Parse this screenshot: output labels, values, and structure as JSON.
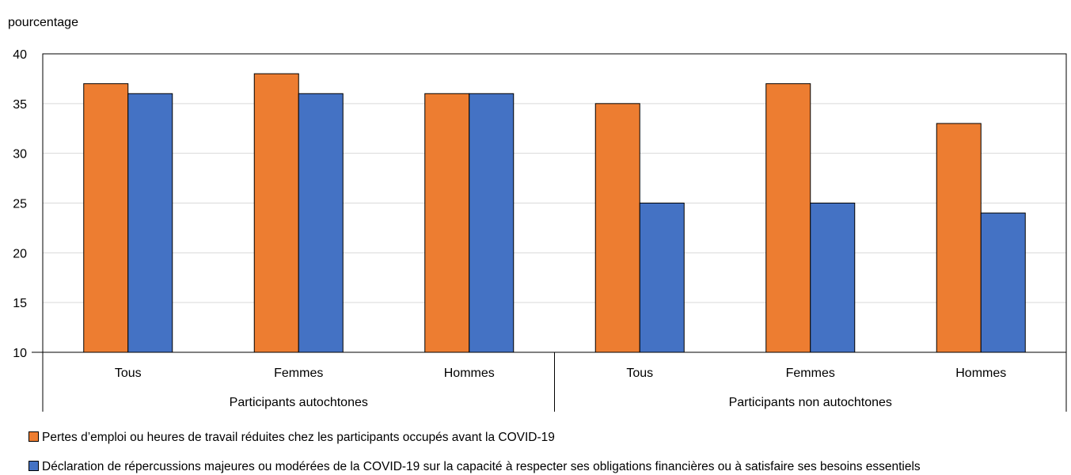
{
  "chart_data": {
    "type": "bar",
    "ylabel": "pourcentage",
    "ylim": [
      10,
      40
    ],
    "yticks": [
      10,
      15,
      20,
      25,
      30,
      35,
      40
    ],
    "grid": true,
    "categories": [
      "Tous",
      "Femmes",
      "Hommes",
      "Tous",
      "Femmes",
      "Hommes"
    ],
    "groups": [
      {
        "label": "Participants autochtones",
        "categories": [
          0,
          1,
          2
        ]
      },
      {
        "label": "Participants non autochtones",
        "categories": [
          3,
          4,
          5
        ]
      }
    ],
    "series": [
      {
        "name": "Pertes d’emploi ou heures de travail réduites chez les participants occupés avant la COVID-19",
        "color": "#ED7D31",
        "values": [
          37,
          38,
          36,
          35,
          37,
          33
        ]
      },
      {
        "name": "Déclaration de répercussions majeures ou modérées de la COVID-19 sur la capacité à respecter ses obligations financières ou à satisfaire ses besoins essentiels",
        "color": "#4472C4",
        "values": [
          36,
          36,
          36,
          25,
          25,
          24
        ]
      }
    ],
    "legend_position": "bottom-left"
  }
}
